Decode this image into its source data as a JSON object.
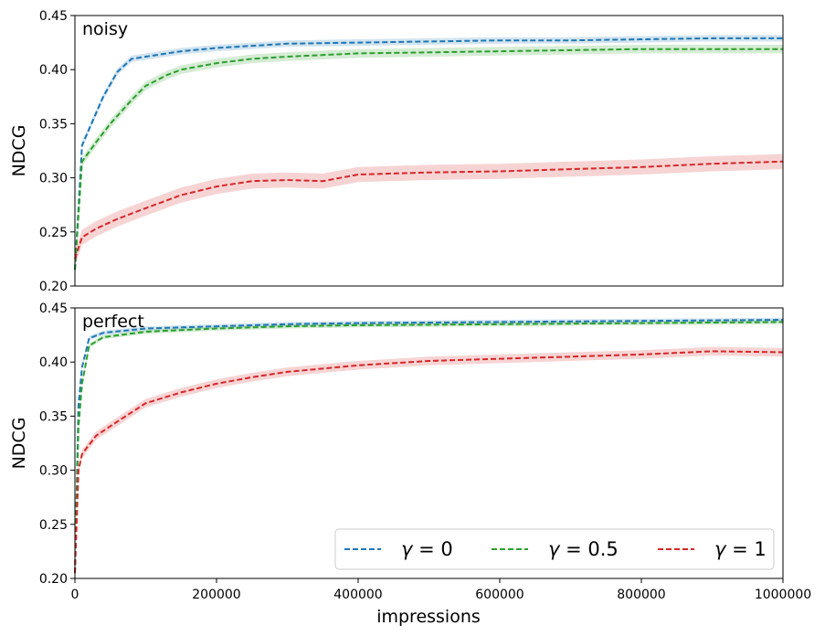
{
  "chart_data": [
    {
      "type": "line",
      "title": "noisy",
      "xlabel": "",
      "ylabel": "NDCG",
      "xlim": [
        0,
        1000000
      ],
      "ylim": [
        0.2,
        0.45
      ],
      "yticks": [
        "0.20",
        "0.25",
        "0.30",
        "0.35",
        "0.40",
        "0.45"
      ],
      "series": [
        {
          "name": "γ = 0",
          "color": "#1f77b4",
          "x": [
            0,
            10000,
            20000,
            40000,
            60000,
            80000,
            100000,
            150000,
            200000,
            300000,
            400000,
            500000,
            600000,
            700000,
            800000,
            900000,
            1000000
          ],
          "values": [
            0.215,
            0.33,
            0.345,
            0.375,
            0.398,
            0.41,
            0.412,
            0.417,
            0.42,
            0.424,
            0.425,
            0.426,
            0.427,
            0.427,
            0.428,
            0.429,
            0.429
          ],
          "band": 0.003
        },
        {
          "name": "γ = 0.5",
          "color": "#2ca02c",
          "x": [
            0,
            10000,
            30000,
            50000,
            80000,
            100000,
            130000,
            150000,
            200000,
            250000,
            300000,
            400000,
            500000,
            600000,
            700000,
            800000,
            900000,
            1000000
          ],
          "values": [
            0.215,
            0.315,
            0.333,
            0.35,
            0.372,
            0.385,
            0.395,
            0.4,
            0.406,
            0.41,
            0.412,
            0.415,
            0.416,
            0.417,
            0.418,
            0.419,
            0.419,
            0.419
          ],
          "band": 0.004
        },
        {
          "name": "γ = 1",
          "color": "#d62728",
          "x": [
            0,
            10000,
            30000,
            60000,
            100000,
            150000,
            200000,
            250000,
            300000,
            350000,
            400000,
            500000,
            600000,
            700000,
            800000,
            900000,
            1000000
          ],
          "values": [
            0.225,
            0.245,
            0.253,
            0.262,
            0.272,
            0.284,
            0.292,
            0.297,
            0.298,
            0.297,
            0.303,
            0.305,
            0.306,
            0.308,
            0.31,
            0.313,
            0.315
          ],
          "band": 0.007
        }
      ]
    },
    {
      "type": "line",
      "title": "perfect",
      "xlabel": "impressions",
      "ylabel": "NDCG",
      "xlim": [
        0,
        1000000
      ],
      "ylim": [
        0.2,
        0.45
      ],
      "xticks": [
        "0",
        "200000",
        "400000",
        "600000",
        "800000",
        "1000000"
      ],
      "yticks": [
        "0.20",
        "0.25",
        "0.30",
        "0.35",
        "0.40",
        "0.45"
      ],
      "series": [
        {
          "name": "γ = 0",
          "color": "#1f77b4",
          "x": [
            0,
            5000,
            10000,
            20000,
            40000,
            100000,
            200000,
            300000,
            400000,
            600000,
            800000,
            1000000
          ],
          "values": [
            0.205,
            0.36,
            0.395,
            0.422,
            0.427,
            0.431,
            0.433,
            0.435,
            0.436,
            0.437,
            0.438,
            0.439
          ],
          "band": 0.002
        },
        {
          "name": "γ = 0.5",
          "color": "#2ca02c",
          "x": [
            0,
            5000,
            10000,
            20000,
            40000,
            100000,
            200000,
            300000,
            400000,
            600000,
            800000,
            1000000
          ],
          "values": [
            0.205,
            0.34,
            0.38,
            0.415,
            0.423,
            0.428,
            0.431,
            0.433,
            0.434,
            0.435,
            0.436,
            0.437
          ],
          "band": 0.002
        },
        {
          "name": "γ = 1",
          "color": "#d62728",
          "x": [
            0,
            5000,
            10000,
            30000,
            60000,
            100000,
            150000,
            200000,
            250000,
            300000,
            400000,
            500000,
            600000,
            700000,
            800000,
            900000,
            1000000
          ],
          "values": [
            0.205,
            0.3,
            0.315,
            0.332,
            0.345,
            0.362,
            0.372,
            0.38,
            0.386,
            0.391,
            0.397,
            0.401,
            0.403,
            0.405,
            0.407,
            0.41,
            0.409
          ],
          "band": 0.004
        }
      ]
    }
  ],
  "legend": {
    "position": "lower-right",
    "entries": [
      {
        "symbol": "γ",
        "equals": " = ",
        "value": "0",
        "color": "#1f77b4"
      },
      {
        "symbol": "γ",
        "equals": " = ",
        "value": "0.5",
        "color": "#2ca02c"
      },
      {
        "symbol": "γ",
        "equals": " = ",
        "value": "1",
        "color": "#d62728"
      }
    ]
  }
}
